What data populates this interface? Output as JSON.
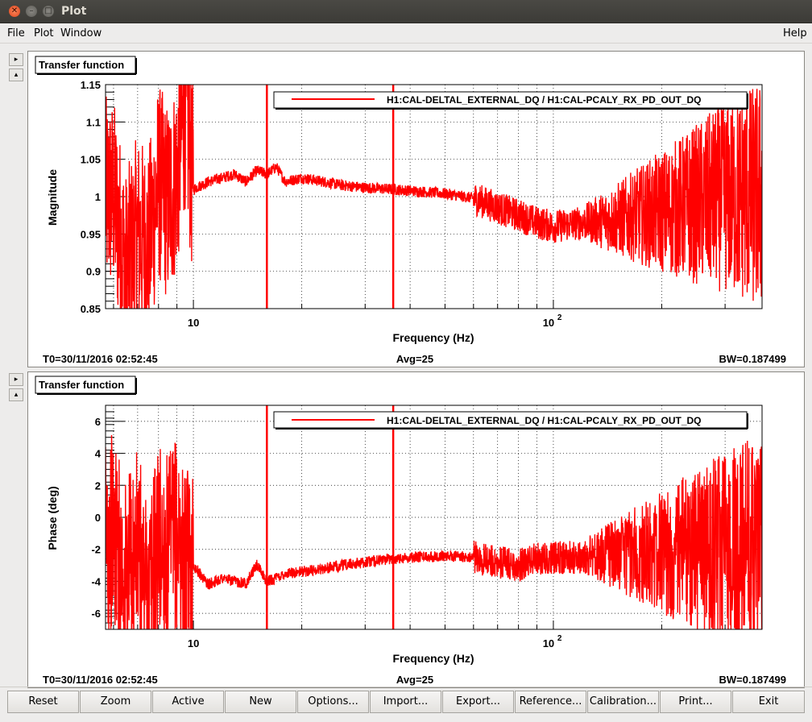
{
  "window": {
    "title": "Plot"
  },
  "menu": {
    "file": "File",
    "plot": "Plot",
    "window": "Window",
    "help": "Help"
  },
  "panels": [
    {
      "title": "Transfer function",
      "ylabel": "Magnitude",
      "xlabel": "Frequency (Hz)",
      "legend": "H1:CAL-DELTAL_EXTERNAL_DQ / H1:CAL-PCALY_RX_PD_OUT_DQ",
      "yticks": [
        "0.85",
        "0.9",
        "0.95",
        "1",
        "1.05",
        "1.1",
        "1.15"
      ],
      "xtick_10": "10",
      "xtick_100_base": "10",
      "xtick_100_exp": "2",
      "t0": "T0=30/11/2016 02:52:45",
      "avg": "Avg=25",
      "bw": "BW=0.187499"
    },
    {
      "title": "Transfer function",
      "ylabel": "Phase (deg)",
      "xlabel": "Frequency (Hz)",
      "legend": "H1:CAL-DELTAL_EXTERNAL_DQ / H1:CAL-PCALY_RX_PD_OUT_DQ",
      "yticks": [
        "-6",
        "-4",
        "-2",
        "0",
        "2",
        "4",
        "6"
      ],
      "xtick_10": "10",
      "xtick_100_base": "10",
      "xtick_100_exp": "2",
      "t0": "T0=30/11/2016 02:52:45",
      "avg": "Avg=25",
      "bw": "BW=0.187499"
    }
  ],
  "chart_data": [
    {
      "type": "line",
      "title": "Transfer function",
      "xlabel": "Frequency (Hz)",
      "ylabel": "Magnitude",
      "xscale": "log",
      "xlim": [
        5.7,
        380
      ],
      "ylim": [
        0.85,
        1.15
      ],
      "grid": true,
      "legend_position": "top-right",
      "series": [
        {
          "name": "H1:CAL-DELTAL_EXTERNAL_DQ / H1:CAL-PCALY_RX_PD_OUT_DQ",
          "color": "#ff0000",
          "x": [
            6,
            6.5,
            7,
            7.5,
            8,
            8.5,
            9,
            9.5,
            10,
            11,
            12,
            13,
            14,
            15,
            16,
            17,
            18,
            20,
            23,
            26,
            30,
            35,
            40,
            50,
            60,
            70,
            80,
            90,
            100,
            120,
            150,
            200,
            250,
            300,
            350
          ],
          "y": [
            1.0,
            0.9,
            0.95,
            0.93,
            1.02,
            0.99,
            1.03,
            1.12,
            1.01,
            1.02,
            1.025,
            1.03,
            1.02,
            1.035,
            1.03,
            1.04,
            1.02,
            1.025,
            1.02,
            1.015,
            1.012,
            1.01,
            1.008,
            1.004,
            0.998,
            0.985,
            0.975,
            0.965,
            0.96,
            0.965,
            0.97,
            0.98,
            0.99,
            1.0,
            1.0
          ]
        }
      ]
    },
    {
      "type": "line",
      "title": "Transfer function",
      "xlabel": "Frequency (Hz)",
      "ylabel": "Phase (deg)",
      "xscale": "log",
      "xlim": [
        5.7,
        380
      ],
      "ylim": [
        -7,
        7
      ],
      "grid": true,
      "legend_position": "top-right",
      "series": [
        {
          "name": "H1:CAL-DELTAL_EXTERNAL_DQ / H1:CAL-PCALY_RX_PD_OUT_DQ",
          "color": "#ff0000",
          "x": [
            6,
            6.5,
            7,
            7.5,
            8,
            8.5,
            9,
            9.5,
            10,
            11,
            12,
            13,
            14,
            15,
            16,
            17,
            18,
            20,
            23,
            26,
            30,
            35,
            40,
            50,
            60,
            70,
            80,
            90,
            100,
            120,
            150,
            200,
            250,
            300,
            350
          ],
          "y": [
            -1.0,
            -4.0,
            -2.0,
            -5.0,
            -1.5,
            -2.5,
            -1.0,
            -3.5,
            -3.0,
            -4.2,
            -3.8,
            -4.0,
            -4.1,
            -3.0,
            -4.0,
            -3.8,
            -3.5,
            -3.4,
            -3.2,
            -3.0,
            -2.8,
            -2.6,
            -2.5,
            -2.4,
            -2.5,
            -2.8,
            -3.0,
            -2.6,
            -2.5,
            -2.5,
            -2.3,
            -2.2,
            -2.0,
            -2.0,
            -2.0
          ]
        }
      ]
    }
  ],
  "buttons": [
    "Reset",
    "Zoom",
    "Active",
    "New",
    "Options...",
    "Import...",
    "Export...",
    "Reference...",
    "Calibration...",
    "Print...",
    "Exit"
  ],
  "colors": {
    "trace": "#ff0000",
    "titlebar": "#3c3b37",
    "close": "#e0461d"
  }
}
